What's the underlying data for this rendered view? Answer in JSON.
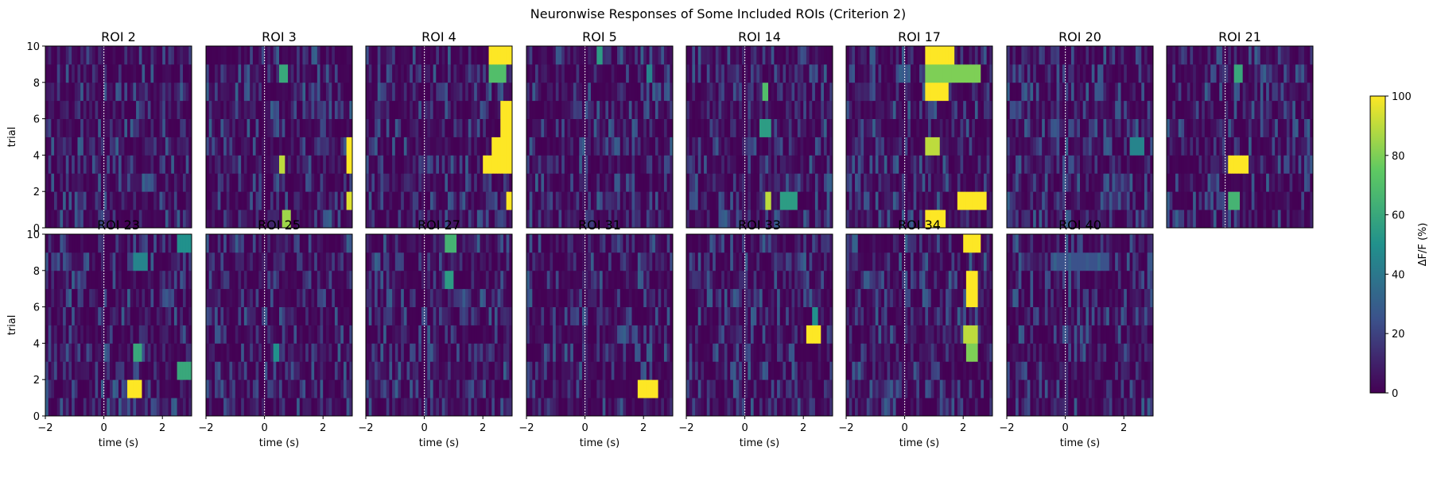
{
  "figure": {
    "title": "Neuronwise Responses of Some Included ROIs (Criterion 2)",
    "xlabel": "time (s)",
    "ylabel": "trial",
    "colorbar_label": "ΔF/F (%)"
  },
  "chart_data": {
    "type": "heatmap",
    "colormap": "viridis",
    "colormap_stops": [
      "#440154",
      "#3b528b",
      "#21918c",
      "#5ec962",
      "#fde725"
    ],
    "xlim": [
      -2,
      3
    ],
    "ylim": [
      0,
      10
    ],
    "x_ticks": [
      -2,
      0,
      2
    ],
    "x_tick_labels": [
      "−2",
      "0",
      "2"
    ],
    "y_ticks": [
      0,
      2,
      4,
      6,
      8,
      10
    ],
    "y_tick_labels": [
      "0",
      "2",
      "4",
      "6",
      "8",
      "10"
    ],
    "stimulus_onset_s": 0,
    "color_range": [
      0,
      100
    ],
    "colorbar_ticks": [
      0,
      20,
      40,
      60,
      80,
      100
    ],
    "colorbar_tick_labels": [
      "0",
      "20",
      "40",
      "60",
      "80",
      "100"
    ],
    "rois": [
      "ROI 2",
      "ROI 3",
      "ROI 4",
      "ROI 5",
      "ROI 14",
      "ROI 17",
      "ROI 20",
      "ROI 21",
      "ROI 23",
      "ROI 25",
      "ROI 27",
      "ROI 31",
      "ROI 33",
      "ROI 34",
      "ROI 40"
    ],
    "bright_responses": [
      {
        "roi": "ROI 3",
        "trial": 0,
        "t_start": 0.6,
        "t_end": 0.9,
        "value": 85
      },
      {
        "roi": "ROI 3",
        "trial": 3,
        "t_start": 0.5,
        "t_end": 0.7,
        "value": 90
      },
      {
        "roi": "ROI 3",
        "trial": 8,
        "t_start": 0.5,
        "t_end": 0.8,
        "value": 60
      },
      {
        "roi": "ROI 3",
        "trial": 1,
        "t_start": 2.8,
        "t_end": 3.0,
        "value": 95
      },
      {
        "roi": "ROI 3",
        "trial": 3,
        "t_start": 2.8,
        "t_end": 3.0,
        "value": 100
      },
      {
        "roi": "ROI 3",
        "trial": 4,
        "t_start": 2.8,
        "t_end": 3.0,
        "value": 100
      },
      {
        "roi": "ROI 4",
        "trial": 9,
        "t_start": 2.2,
        "t_end": 3.0,
        "value": 100
      },
      {
        "roi": "ROI 4",
        "trial": 8,
        "t_start": 2.2,
        "t_end": 2.8,
        "value": 70
      },
      {
        "roi": "ROI 4",
        "trial": 6,
        "t_start": 2.6,
        "t_end": 3.0,
        "value": 100
      },
      {
        "roi": "ROI 4",
        "trial": 5,
        "t_start": 2.6,
        "t_end": 3.0,
        "value": 100
      },
      {
        "roi": "ROI 4",
        "trial": 4,
        "t_start": 2.3,
        "t_end": 3.0,
        "value": 100
      },
      {
        "roi": "ROI 4",
        "trial": 3,
        "t_start": 2.0,
        "t_end": 3.0,
        "value": 100
      },
      {
        "roi": "ROI 4",
        "trial": 1,
        "t_start": 2.8,
        "t_end": 3.0,
        "value": 100
      },
      {
        "roi": "ROI 5",
        "trial": 9,
        "t_start": 0.4,
        "t_end": 0.6,
        "value": 55
      },
      {
        "roi": "ROI 5",
        "trial": 8,
        "t_start": 2.1,
        "t_end": 2.3,
        "value": 45
      },
      {
        "roi": "ROI 14",
        "trial": 1,
        "t_start": 0.7,
        "t_end": 0.9,
        "value": 90
      },
      {
        "roi": "ROI 14",
        "trial": 1,
        "t_start": 1.2,
        "t_end": 1.8,
        "value": 55
      },
      {
        "roi": "ROI 14",
        "trial": 5,
        "t_start": 0.5,
        "t_end": 0.9,
        "value": 55
      },
      {
        "roi": "ROI 14",
        "trial": 7,
        "t_start": 0.6,
        "t_end": 0.8,
        "value": 70
      },
      {
        "roi": "ROI 17",
        "trial": 9,
        "t_start": 0.7,
        "t_end": 1.7,
        "value": 100
      },
      {
        "roi": "ROI 17",
        "trial": 8,
        "t_start": 0.7,
        "t_end": 2.6,
        "value": 80
      },
      {
        "roi": "ROI 17",
        "trial": 7,
        "t_start": 0.7,
        "t_end": 1.5,
        "value": 100
      },
      {
        "roi": "ROI 17",
        "trial": 4,
        "t_start": 0.7,
        "t_end": 1.2,
        "value": 90
      },
      {
        "roi": "ROI 17",
        "trial": 1,
        "t_start": 1.8,
        "t_end": 2.8,
        "value": 100
      },
      {
        "roi": "ROI 17",
        "trial": 0,
        "t_start": 0.7,
        "t_end": 1.4,
        "value": 100
      },
      {
        "roi": "ROI 20",
        "trial": 4,
        "t_start": 2.2,
        "t_end": 2.7,
        "value": 45
      },
      {
        "roi": "ROI 21",
        "trial": 3,
        "t_start": 0.1,
        "t_end": 0.8,
        "value": 100
      },
      {
        "roi": "ROI 21",
        "trial": 1,
        "t_start": 0.1,
        "t_end": 0.5,
        "value": 65
      },
      {
        "roi": "ROI 21",
        "trial": 8,
        "t_start": 0.3,
        "t_end": 0.6,
        "value": 60
      },
      {
        "roi": "ROI 23",
        "trial": 1,
        "t_start": 0.9,
        "t_end": 1.3,
        "value": 100
      },
      {
        "roi": "ROI 23",
        "trial": 2,
        "t_start": 2.5,
        "t_end": 2.9,
        "value": 60
      },
      {
        "roi": "ROI 23",
        "trial": 3,
        "t_start": 1.0,
        "t_end": 1.3,
        "value": 60
      },
      {
        "roi": "ROI 23",
        "trial": 8,
        "t_start": 1.0,
        "t_end": 1.5,
        "value": 45
      },
      {
        "roi": "ROI 23",
        "trial": 9,
        "t_start": 2.5,
        "t_end": 2.9,
        "value": 50
      },
      {
        "roi": "ROI 25",
        "trial": 3,
        "t_start": 0.3,
        "t_end": 0.5,
        "value": 50
      },
      {
        "roi": "ROI 27",
        "trial": 9,
        "t_start": 0.8,
        "t_end": 1.1,
        "value": 65
      },
      {
        "roi": "ROI 27",
        "trial": 7,
        "t_start": 0.8,
        "t_end": 1.0,
        "value": 55
      },
      {
        "roi": "ROI 31",
        "trial": 1,
        "t_start": 1.8,
        "t_end": 2.4,
        "value": 100
      },
      {
        "roi": "ROI 33",
        "trial": 4,
        "t_start": 2.1,
        "t_end": 2.6,
        "value": 100
      },
      {
        "roi": "ROI 33",
        "trial": 5,
        "t_start": 2.3,
        "t_end": 2.5,
        "value": 50
      },
      {
        "roi": "ROI 34",
        "trial": 9,
        "t_start": 2.0,
        "t_end": 2.6,
        "value": 100
      },
      {
        "roi": "ROI 34",
        "trial": 7,
        "t_start": 2.1,
        "t_end": 2.4,
        "value": 100
      },
      {
        "roi": "ROI 34",
        "trial": 6,
        "t_start": 2.1,
        "t_end": 2.4,
        "value": 100
      },
      {
        "roi": "ROI 34",
        "trial": 4,
        "t_start": 2.0,
        "t_end": 2.4,
        "value": 90
      },
      {
        "roi": "ROI 34",
        "trial": 3,
        "t_start": 2.1,
        "t_end": 2.5,
        "value": 80
      },
      {
        "roi": "ROI 40",
        "trial": 8,
        "t_start": -0.5,
        "t_end": 1.5,
        "value": 25
      }
    ]
  }
}
